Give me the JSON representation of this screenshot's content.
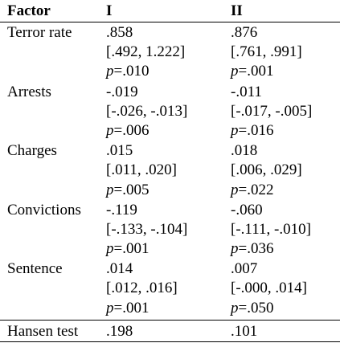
{
  "table": {
    "headers": [
      "Factor",
      "I",
      "II"
    ],
    "rows": [
      {
        "factor": "Terror rate",
        "cols": [
          {
            "est": ".858",
            "ci": "[.492, 1.222]",
            "p": ".010"
          },
          {
            "est": ".876",
            "ci": "[.761, .991]",
            "p": ".001"
          }
        ]
      },
      {
        "factor": "Arrests",
        "cols": [
          {
            "est": "-.019",
            "ci": "[-.026, -.013]",
            "p": ".006"
          },
          {
            "est": "-.011",
            "ci": "[-.017, -.005]",
            "p": ".016"
          }
        ]
      },
      {
        "factor": "Charges",
        "cols": [
          {
            "est": ".015",
            "ci": "[.011, .020]",
            "p": ".005"
          },
          {
            "est": ".018",
            "ci": "[.006, .029]",
            "p": ".022"
          }
        ]
      },
      {
        "factor": "Convictions",
        "cols": [
          {
            "est": "-.119",
            "ci": "[-.133, -.104]",
            "p": ".001"
          },
          {
            "est": "-.060",
            "ci": "[-.111, -.010]",
            "p": ".036"
          }
        ]
      },
      {
        "factor": "Sentence",
        "cols": [
          {
            "est": ".014",
            "ci": "[.012, .016]",
            "p": ".001"
          },
          {
            "est": ".007",
            "ci": "[-.000, .014]",
            "p": ".050"
          }
        ]
      }
    ],
    "p_prefix": "p",
    "p_equals": "=",
    "hansen": {
      "label": "Hansen test",
      "values": [
        ".198",
        ".101"
      ]
    }
  }
}
